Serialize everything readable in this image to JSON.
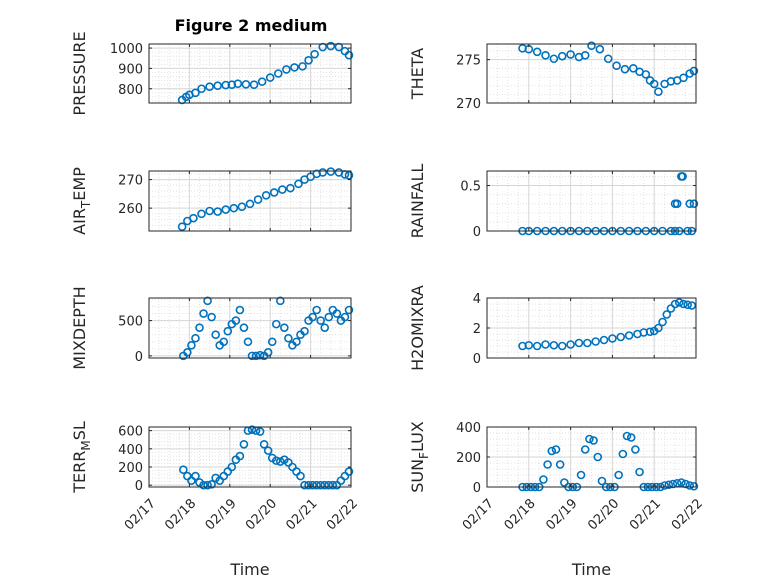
{
  "figure": {
    "title": "Figure 2 medium"
  },
  "chart_data": [
    {
      "type": "scatter",
      "id": "pressure",
      "ylabel": "PRESSURE",
      "ylabel_sub": "",
      "ylabel_after": "",
      "title": "Figure 2 medium",
      "xlim": [
        0,
        5
      ],
      "ylim": [
        730,
        1020
      ],
      "yticks": [
        800,
        900,
        1000
      ],
      "ytick_labels": [
        "800",
        "900",
        "1000"
      ],
      "show_xticklabels": false,
      "grid": true,
      "minor_grid": true,
      "x": [
        0.82,
        0.92,
        1.0,
        1.15,
        1.3,
        1.5,
        1.7,
        1.9,
        2.05,
        2.2,
        2.4,
        2.6,
        2.8,
        3.0,
        3.2,
        3.4,
        3.6,
        3.8,
        3.95,
        4.1,
        4.3,
        4.5,
        4.7,
        4.85,
        4.95
      ],
      "y": [
        745,
        760,
        770,
        780,
        800,
        810,
        815,
        818,
        820,
        825,
        822,
        820,
        835,
        855,
        875,
        895,
        905,
        910,
        940,
        970,
        1005,
        1010,
        1005,
        985,
        965
      ],
      "color": "#0072BD"
    },
    {
      "type": "scatter",
      "id": "theta",
      "ylabel": "THETA",
      "ylabel_sub": "",
      "ylabel_after": "",
      "xlim": [
        0,
        5
      ],
      "ylim": [
        270,
        276.8
      ],
      "yticks": [
        270,
        275
      ],
      "ytick_labels": [
        "270",
        "275"
      ],
      "show_xticklabels": false,
      "grid": true,
      "minor_grid": true,
      "x": [
        0.85,
        1.0,
        1.2,
        1.4,
        1.6,
        1.8,
        2.0,
        2.2,
        2.35,
        2.5,
        2.7,
        2.9,
        3.1,
        3.3,
        3.5,
        3.65,
        3.8,
        3.9,
        4.0,
        4.1,
        4.25,
        4.4,
        4.55,
        4.7,
        4.85,
        4.95
      ],
      "y": [
        276.3,
        276.2,
        275.9,
        275.5,
        275.1,
        275.4,
        275.6,
        275.3,
        275.5,
        276.6,
        276.2,
        275.1,
        274.3,
        273.9,
        274.0,
        273.6,
        273.3,
        272.6,
        272.2,
        271.3,
        272.2,
        272.5,
        272.6,
        272.9,
        273.4,
        273.7
      ],
      "color": "#0072BD"
    },
    {
      "type": "scatter",
      "id": "air_temp",
      "ylabel": "AIR",
      "ylabel_sub": "T",
      "ylabel_after": "EMP",
      "xlim": [
        0,
        5
      ],
      "ylim": [
        252,
        273
      ],
      "yticks": [
        260,
        270
      ],
      "ytick_labels": [
        "260",
        "270"
      ],
      "show_xticklabels": false,
      "grid": true,
      "minor_grid": true,
      "x": [
        0.82,
        0.95,
        1.1,
        1.3,
        1.5,
        1.7,
        1.9,
        2.1,
        2.3,
        2.5,
        2.7,
        2.9,
        3.1,
        3.3,
        3.5,
        3.7,
        3.85,
        4.0,
        4.15,
        4.3,
        4.5,
        4.7,
        4.85,
        4.95
      ],
      "y": [
        253.5,
        255.5,
        256.5,
        258.0,
        259.0,
        258.8,
        259.5,
        260.0,
        260.5,
        261.5,
        263.0,
        264.5,
        265.5,
        266.5,
        267.0,
        268.5,
        270.0,
        271.0,
        272.0,
        272.5,
        272.8,
        272.5,
        271.8,
        271.5
      ],
      "color": "#0072BD"
    },
    {
      "type": "scatter",
      "id": "rainfall",
      "ylabel": "RAINFALL",
      "ylabel_sub": "",
      "ylabel_after": "",
      "xlim": [
        0,
        5
      ],
      "ylim": [
        0,
        0.66
      ],
      "yticks": [
        0,
        0.5
      ],
      "ytick_labels": [
        "0",
        "0.5"
      ],
      "show_xticklabels": false,
      "grid": true,
      "minor_grid": true,
      "x": [
        0.85,
        1.0,
        1.2,
        1.4,
        1.6,
        1.8,
        2.0,
        2.2,
        2.4,
        2.6,
        2.8,
        3.0,
        3.2,
        3.4,
        3.6,
        3.8,
        4.0,
        4.2,
        4.4,
        4.5,
        4.6,
        4.8,
        4.9,
        4.65,
        4.68,
        4.5,
        4.55,
        4.85,
        4.95
      ],
      "y": [
        0,
        0,
        0,
        0,
        0,
        0,
        0,
        0,
        0,
        0,
        0,
        0,
        0,
        0,
        0,
        0,
        0,
        0,
        0,
        0,
        0,
        0,
        0,
        0.6,
        0.6,
        0.3,
        0.3,
        0.3,
        0.3
      ],
      "color": "#0072BD"
    },
    {
      "type": "scatter",
      "id": "mixdepth",
      "ylabel": "MIXDEPTH",
      "ylabel_sub": "",
      "ylabel_after": "",
      "xlim": [
        0,
        5
      ],
      "ylim": [
        -30,
        820
      ],
      "yticks": [
        0,
        500
      ],
      "ytick_labels": [
        "0",
        "500"
      ],
      "show_xticklabels": false,
      "grid": true,
      "minor_grid": true,
      "x": [
        0.85,
        0.95,
        1.05,
        1.15,
        1.25,
        1.35,
        1.45,
        1.55,
        1.65,
        1.75,
        1.85,
        1.95,
        2.05,
        2.15,
        2.25,
        2.35,
        2.45,
        2.55,
        2.65,
        2.75,
        2.85,
        2.95,
        3.05,
        3.15,
        3.25,
        3.35,
        3.45,
        3.55,
        3.65,
        3.75,
        3.85,
        3.95,
        4.05,
        4.15,
        4.25,
        4.35,
        4.45,
        4.55,
        4.65,
        4.75,
        4.85,
        4.95
      ],
      "y": [
        0,
        50,
        150,
        250,
        400,
        600,
        780,
        550,
        300,
        150,
        200,
        350,
        450,
        500,
        650,
        400,
        200,
        0,
        0,
        10,
        0,
        50,
        200,
        450,
        780,
        400,
        250,
        150,
        200,
        300,
        350,
        500,
        550,
        650,
        500,
        400,
        550,
        650,
        600,
        500,
        550,
        650
      ],
      "color": "#0072BD"
    },
    {
      "type": "scatter",
      "id": "h2omixra",
      "ylabel": "H2OMIXRA",
      "ylabel_sub": "",
      "ylabel_after": "",
      "xlim": [
        0,
        5
      ],
      "ylim": [
        0,
        4
      ],
      "yticks": [
        0,
        2,
        4
      ],
      "ytick_labels": [
        "0",
        "2",
        "4"
      ],
      "show_xticklabels": false,
      "grid": true,
      "minor_grid": true,
      "x": [
        0.85,
        1.0,
        1.2,
        1.4,
        1.6,
        1.8,
        2.0,
        2.2,
        2.4,
        2.6,
        2.8,
        3.0,
        3.2,
        3.4,
        3.6,
        3.75,
        3.9,
        4.0,
        4.1,
        4.2,
        4.3,
        4.4,
        4.5,
        4.6,
        4.7,
        4.8,
        4.9
      ],
      "y": [
        0.8,
        0.85,
        0.8,
        0.9,
        0.85,
        0.8,
        0.9,
        1.0,
        1.0,
        1.1,
        1.2,
        1.3,
        1.4,
        1.5,
        1.6,
        1.7,
        1.75,
        1.8,
        2.0,
        2.4,
        2.9,
        3.3,
        3.6,
        3.7,
        3.6,
        3.55,
        3.5
      ],
      "color": "#0072BD"
    },
    {
      "type": "scatter",
      "id": "terr_msl",
      "ylabel": "TERR",
      "ylabel_sub": "M",
      "ylabel_after": "SL",
      "xlim": [
        0,
        5
      ],
      "ylim": [
        -20,
        640
      ],
      "yticks": [
        0,
        200,
        400,
        600
      ],
      "ytick_labels": [
        "0",
        "200",
        "400",
        "600"
      ],
      "show_xticklabels": true,
      "xticks": [
        0,
        1,
        2,
        3,
        4,
        5
      ],
      "xtick_labels": [
        "02/17",
        "02/18",
        "02/19",
        "02/20",
        "02/21",
        "02/22"
      ],
      "xlabel": "Time",
      "grid": true,
      "minor_grid": true,
      "x": [
        0.85,
        0.95,
        1.05,
        1.15,
        1.25,
        1.35,
        1.45,
        1.55,
        1.65,
        1.75,
        1.85,
        1.95,
        2.05,
        2.15,
        2.25,
        2.35,
        2.45,
        2.55,
        2.65,
        2.75,
        2.85,
        2.95,
        3.05,
        3.15,
        3.25,
        3.35,
        3.45,
        3.55,
        3.65,
        3.75,
        3.85,
        3.95,
        4.05,
        4.15,
        4.25,
        4.35,
        4.45,
        4.55,
        4.65,
        4.75,
        4.85,
        4.95
      ],
      "y": [
        170,
        100,
        50,
        100,
        30,
        0,
        0,
        10,
        80,
        50,
        100,
        150,
        200,
        280,
        320,
        450,
        600,
        610,
        600,
        590,
        450,
        380,
        300,
        270,
        260,
        280,
        250,
        200,
        150,
        100,
        0,
        0,
        0,
        0,
        0,
        0,
        0,
        0,
        0,
        50,
        100,
        150
      ],
      "color": "#0072BD"
    },
    {
      "type": "scatter",
      "id": "sun_flux",
      "ylabel": "SUN",
      "ylabel_sub": "F",
      "ylabel_after": "LUX",
      "xlim": [
        0,
        5
      ],
      "ylim": [
        0,
        400
      ],
      "yticks": [
        0,
        200,
        400
      ],
      "ytick_labels": [
        "0",
        "200",
        "400"
      ],
      "show_xticklabels": true,
      "xticks": [
        0,
        1,
        2,
        3,
        4,
        5
      ],
      "xtick_labels": [
        "02/17",
        "02/18",
        "02/19",
        "02/20",
        "02/21",
        "02/22"
      ],
      "xlabel": "Time",
      "grid": true,
      "minor_grid": true,
      "x": [
        0.85,
        0.95,
        1.05,
        1.15,
        1.25,
        1.35,
        1.45,
        1.55,
        1.65,
        1.75,
        1.85,
        1.95,
        2.05,
        2.15,
        2.25,
        2.35,
        2.45,
        2.55,
        2.65,
        2.75,
        2.85,
        2.95,
        3.05,
        3.15,
        3.25,
        3.35,
        3.45,
        3.55,
        3.65,
        3.75,
        3.85,
        3.95,
        4.05,
        4.15,
        4.25,
        4.35,
        4.45,
        4.55,
        4.65,
        4.75,
        4.85,
        4.95
      ],
      "y": [
        0,
        0,
        0,
        0,
        0,
        50,
        150,
        240,
        250,
        150,
        30,
        0,
        0,
        0,
        80,
        250,
        320,
        310,
        200,
        40,
        0,
        0,
        0,
        80,
        220,
        340,
        330,
        250,
        100,
        0,
        0,
        0,
        0,
        0,
        10,
        15,
        20,
        25,
        30,
        20,
        10,
        5
      ],
      "color": "#0072BD"
    }
  ]
}
